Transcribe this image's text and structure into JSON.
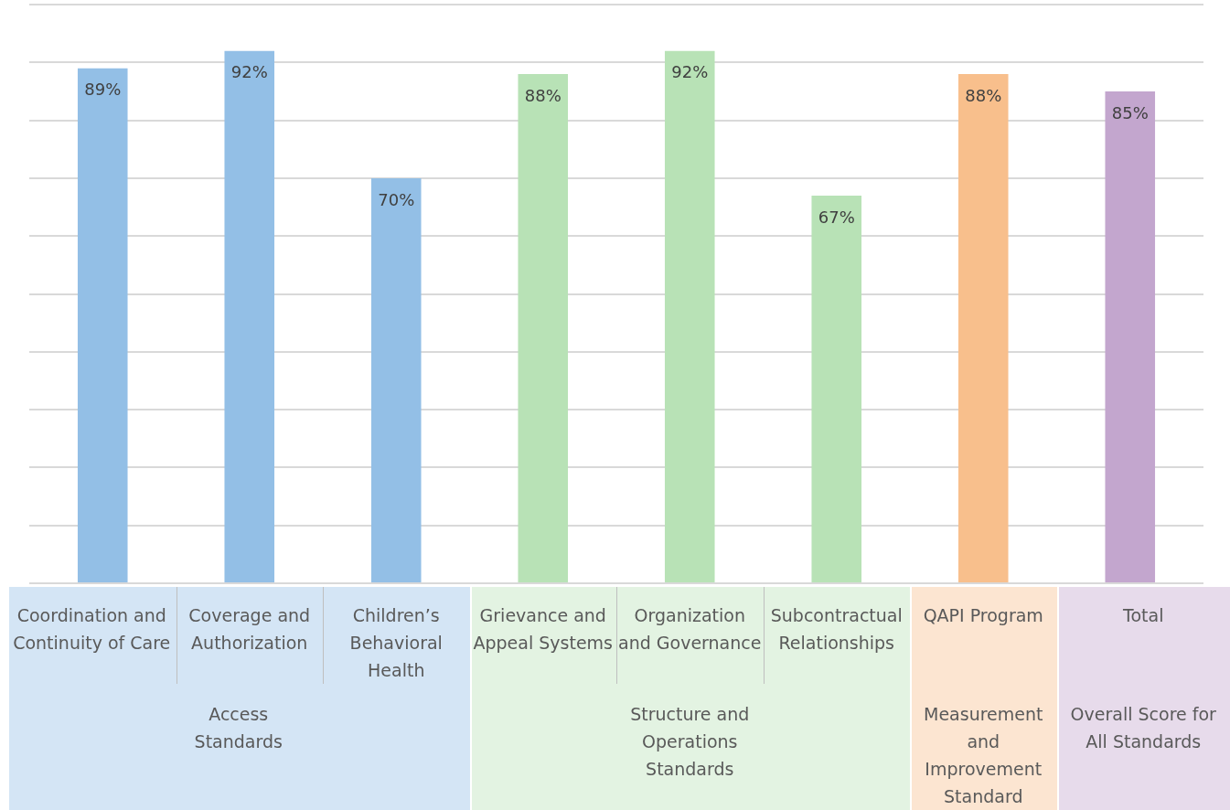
{
  "chart_data": {
    "type": "bar",
    "categories": [
      "Coordination and Continuity of Care",
      "Coverage and Authorization",
      "Children’s Behavioral Health",
      "Grievance and Appeal Systems",
      "Organization and Governance",
      "Subcontractual Relationships",
      "QAPI Program",
      "Total"
    ],
    "values": [
      89,
      92,
      70,
      88,
      92,
      67,
      88,
      85
    ],
    "colors": [
      "#93bfe6",
      "#93bfe6",
      "#93bfe6",
      "#b8e2b6",
      "#b8e2b6",
      "#b8e2b6",
      "#f8bf8c",
      "#c3a6ce"
    ],
    "value_labels": [
      "89%",
      "92%",
      "70%",
      "88%",
      "92%",
      "67%",
      "88%",
      "85%"
    ],
    "grid": "y",
    "tick_labels": "x",
    "legend": false,
    "annotations": [
      "Access Standards",
      "Structure and Operations Standards",
      "Measurement and Improvement Standard",
      "Overall Score for All Standards"
    ]
  }
}
